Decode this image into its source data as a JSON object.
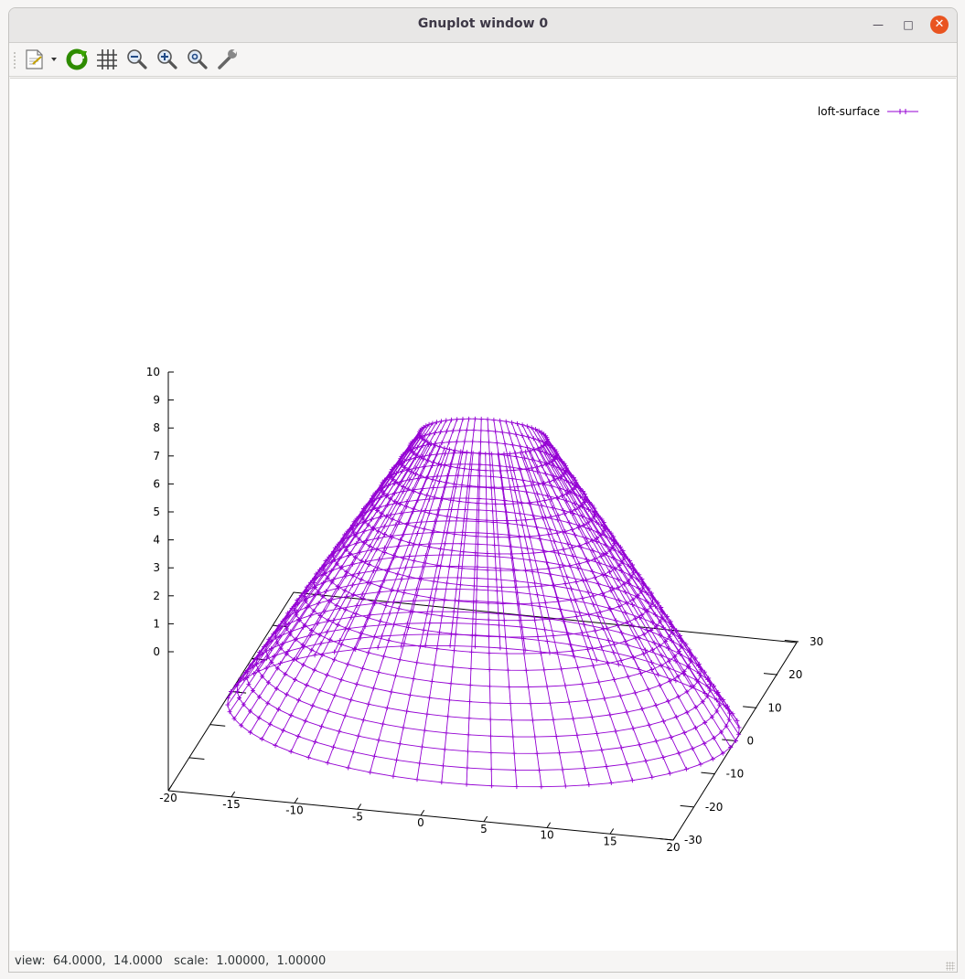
{
  "window": {
    "title": "Gnuplot window 0",
    "controls": {
      "minimize_icon": "minimize-icon",
      "maximize_icon": "maximize-icon",
      "close_icon": "close-icon",
      "close_color": "#e95420"
    }
  },
  "toolbar": {
    "items": [
      {
        "name": "export-button",
        "icon": "document-export-icon"
      },
      {
        "name": "replot-button",
        "icon": "refresh-icon"
      },
      {
        "name": "grid-button",
        "icon": "grid-icon"
      },
      {
        "name": "zoom-out-button",
        "icon": "zoom-out-icon"
      },
      {
        "name": "zoom-in-button",
        "icon": "zoom-in-icon"
      },
      {
        "name": "zoom-fit-button",
        "icon": "zoom-fit-icon"
      },
      {
        "name": "settings-button",
        "icon": "wrench-icon"
      }
    ]
  },
  "chart_data": {
    "type": "surface3d",
    "title": "",
    "series": [
      {
        "name": "loft-surface",
        "color": "#9400d3",
        "point_marker": "plus"
      }
    ],
    "surface": {
      "shape": "truncated cone",
      "base_radius": 20,
      "top_radius": 5,
      "z_range": [
        0,
        10
      ],
      "radial_rings": 21,
      "angular_samples": 64
    },
    "axes": {
      "x": {
        "range": [
          -20,
          20
        ],
        "ticks": [
          "-20",
          "-15",
          "-10",
          "-5",
          "0",
          "5",
          "10",
          "15",
          "20"
        ]
      },
      "y": {
        "range": [
          -30,
          30
        ],
        "ticks": [
          "-30",
          "-20",
          "-10",
          "0",
          "10",
          "20",
          "30"
        ]
      },
      "z": {
        "range": [
          0,
          10
        ],
        "ticks": [
          "0",
          "1",
          "2",
          "3",
          "4",
          "5",
          "6",
          "7",
          "8",
          "9",
          "10"
        ]
      }
    },
    "legend": {
      "position": "top-right"
    },
    "grid": false,
    "colors": {
      "axis": "#000000",
      "surface": "#9400d3"
    }
  },
  "status": {
    "text": "view:  64.0000,  14.0000   scale:  1.00000,  1.00000"
  }
}
